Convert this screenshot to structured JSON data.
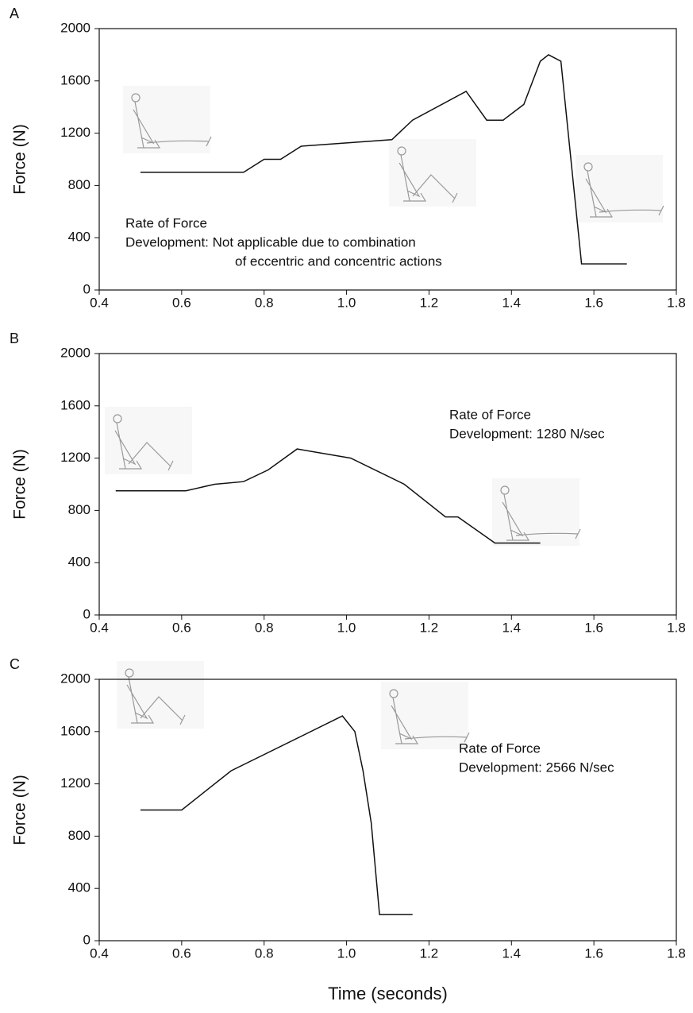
{
  "chart_data": [
    {
      "type": "line",
      "panel": "A",
      "ylabel": "Force (N)",
      "x": [
        0.5,
        0.75,
        0.8,
        0.84,
        0.89,
        1.11,
        1.16,
        1.29,
        1.34,
        1.38,
        1.43,
        1.47,
        1.49,
        1.52,
        1.57,
        1.68
      ],
      "values": [
        900,
        900,
        1000,
        1000,
        1100,
        1150,
        1300,
        1520,
        1300,
        1300,
        1420,
        1750,
        1800,
        1750,
        200,
        200
      ],
      "color": "#111111",
      "xlim": [
        0.4,
        1.8
      ],
      "xticks": [
        0.4,
        0.6,
        0.8,
        {
          "value": 1,
          "label": "1.0"
        },
        1.2,
        1.4,
        1.6,
        1.8
      ],
      "ylim": [
        0,
        2000
      ],
      "yticks": [
        0,
        400,
        800,
        1200,
        1600,
        2000
      ],
      "grid": false,
      "annotation": [
        "Rate of Force",
        "Development: Not applicable due to combination",
        "of eccentric and concentric actions"
      ]
    },
    {
      "type": "line",
      "panel": "B",
      "ylabel": "Force (N)",
      "x": [
        0.44,
        0.61,
        0.68,
        0.75,
        0.81,
        0.88,
        1.01,
        1.14,
        1.24,
        1.27,
        1.36,
        1.47
      ],
      "values": [
        950,
        950,
        1000,
        1020,
        1110,
        1270,
        1200,
        1000,
        750,
        750,
        550,
        550
      ],
      "color": "#111111",
      "xlim": [
        0.4,
        1.8
      ],
      "xticks": [
        0.4,
        0.6,
        0.8,
        {
          "value": 1,
          "label": "1.0"
        },
        1.2,
        1.4,
        1.6,
        1.8
      ],
      "ylim": [
        0,
        2000
      ],
      "yticks": [
        0,
        400,
        800,
        1200,
        1600,
        2000
      ],
      "grid": false,
      "annotation": [
        "Rate of Force",
        "Development: 1280 N/sec"
      ]
    },
    {
      "type": "line",
      "panel": "C",
      "ylabel": "Force (N)",
      "xlabel": "Time (seconds)",
      "x": [
        0.5,
        0.6,
        0.72,
        0.99,
        1.02,
        1.04,
        1.06,
        1.08,
        1.16
      ],
      "values": [
        1000,
        1000,
        1300,
        1720,
        1600,
        1300,
        900,
        200,
        200
      ],
      "color": "#111111",
      "xlim": [
        0.4,
        1.8
      ],
      "xticks": [
        0.4,
        0.6,
        0.8,
        {
          "value": 1,
          "label": "1.0"
        },
        1.2,
        1.4,
        1.6,
        1.8
      ],
      "ylim": [
        0,
        2000
      ],
      "yticks": [
        0,
        400,
        800,
        1200,
        1600,
        2000
      ],
      "grid": false,
      "annotation": [
        "Rate of Force",
        "Development: 2566 N/sec"
      ]
    }
  ]
}
